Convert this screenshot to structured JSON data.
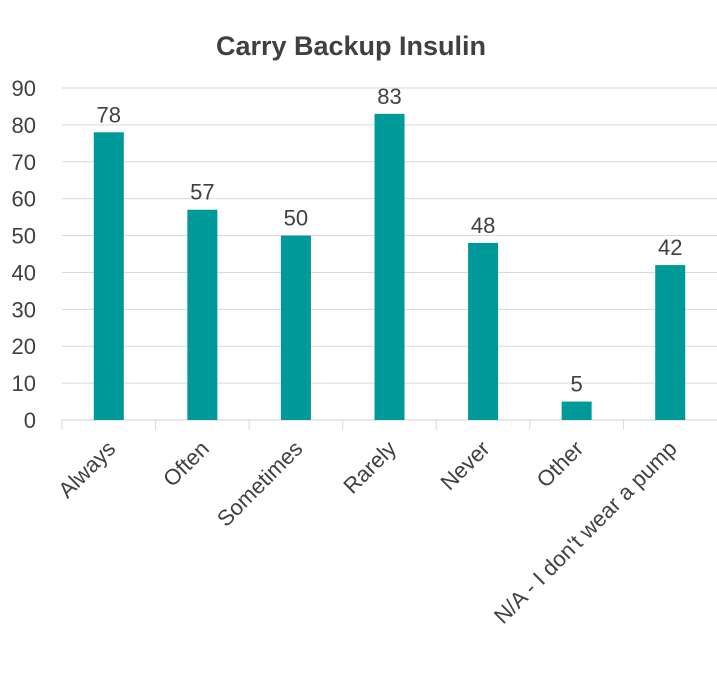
{
  "chart_data": {
    "type": "bar",
    "title": "Carry Backup Insulin",
    "xlabel": "",
    "ylabel": "",
    "categories": [
      "Always",
      "Often",
      "Sometimes",
      "Rarely",
      "Never",
      "Other",
      "N/A - I don't wear a pump"
    ],
    "values": [
      78,
      57,
      50,
      83,
      48,
      5,
      42
    ],
    "ylim": [
      0,
      90
    ],
    "yticks": [
      0,
      10,
      20,
      30,
      40,
      50,
      60,
      70,
      80,
      90
    ],
    "grid": true,
    "legend": "none",
    "bar_color": "#009999"
  }
}
